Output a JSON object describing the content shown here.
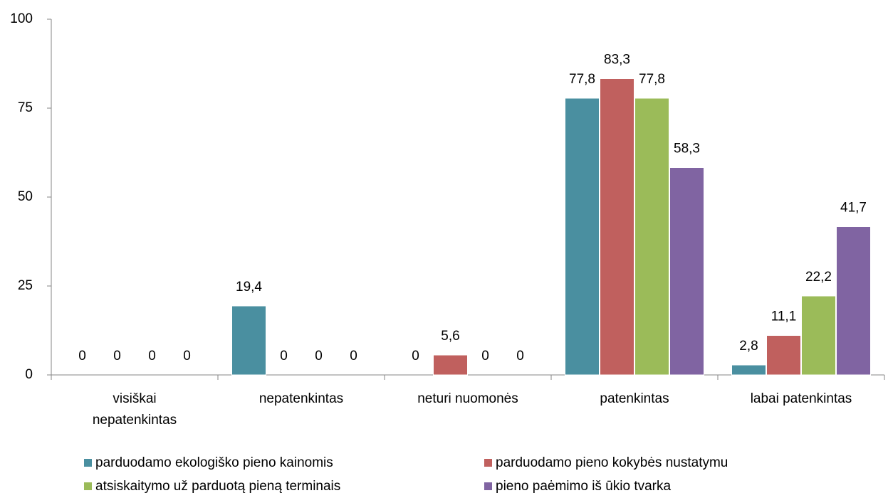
{
  "chart_data": {
    "type": "bar",
    "categories": [
      "visiškai nepatenkintas",
      "nepatenkintas",
      "neturi nuomonės",
      "patenkintas",
      "labai patenkintas"
    ],
    "series": [
      {
        "name": "parduodamo ekologiško pieno kainomis",
        "color": "#4a8fa0",
        "values": [
          0,
          19.4,
          0,
          77.8,
          2.8
        ],
        "value_labels": [
          "0",
          "19,4",
          "0",
          "77,8",
          "2,8"
        ]
      },
      {
        "name": "parduodamo pieno kokybės nustatymu",
        "color": "#c0605e",
        "values": [
          0,
          0,
          5.6,
          83.3,
          11.1
        ],
        "value_labels": [
          "0",
          "0",
          "5,6",
          "83,3",
          "11,1"
        ]
      },
      {
        "name": "atsiskaitymo už parduotą pieną terminais",
        "color": "#9bbb59",
        "values": [
          0,
          0,
          0,
          77.8,
          22.2
        ],
        "value_labels": [
          "0",
          "0",
          "0",
          "77,8",
          "22,2"
        ]
      },
      {
        "name": "pieno paėmimo iš ūkio tvarka",
        "color": "#8064a2",
        "values": [
          0,
          0,
          0,
          58.3,
          41.7
        ],
        "value_labels": [
          "0",
          "0",
          "0",
          "58,3",
          "41,7"
        ]
      }
    ],
    "ylim": [
      0,
      100
    ],
    "yticks": [
      0,
      25,
      50,
      75,
      100
    ],
    "grid": false,
    "legend": "bottom"
  }
}
